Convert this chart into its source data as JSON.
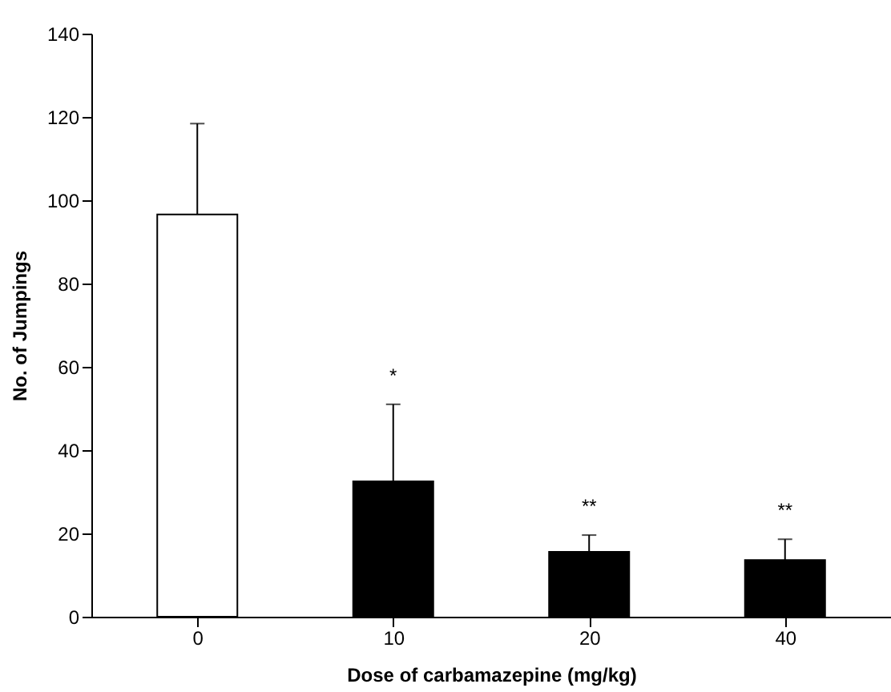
{
  "chart_data": {
    "type": "bar",
    "xlabel": "Dose of carbamazepine (mg/kg)",
    "ylabel": "No. of Jumpings",
    "categories": [
      "0",
      "10",
      "20",
      "40"
    ],
    "values": [
      96.6,
      32.5,
      15.6,
      13.6
    ],
    "colors": [
      "#ffffff",
      "#000000",
      "#000000",
      "#000000"
    ],
    "errors": [
      [
        96.6,
        118.4
      ],
      [
        32.5,
        51
      ],
      [
        15.6,
        19.6
      ],
      [
        13.6,
        18.6
      ]
    ],
    "ylim": [
      0,
      140
    ],
    "yticks": [
      0,
      20,
      40,
      60,
      80,
      100,
      120,
      140
    ],
    "grid": false,
    "annotations": [
      "*",
      "**",
      "**"
    ]
  }
}
